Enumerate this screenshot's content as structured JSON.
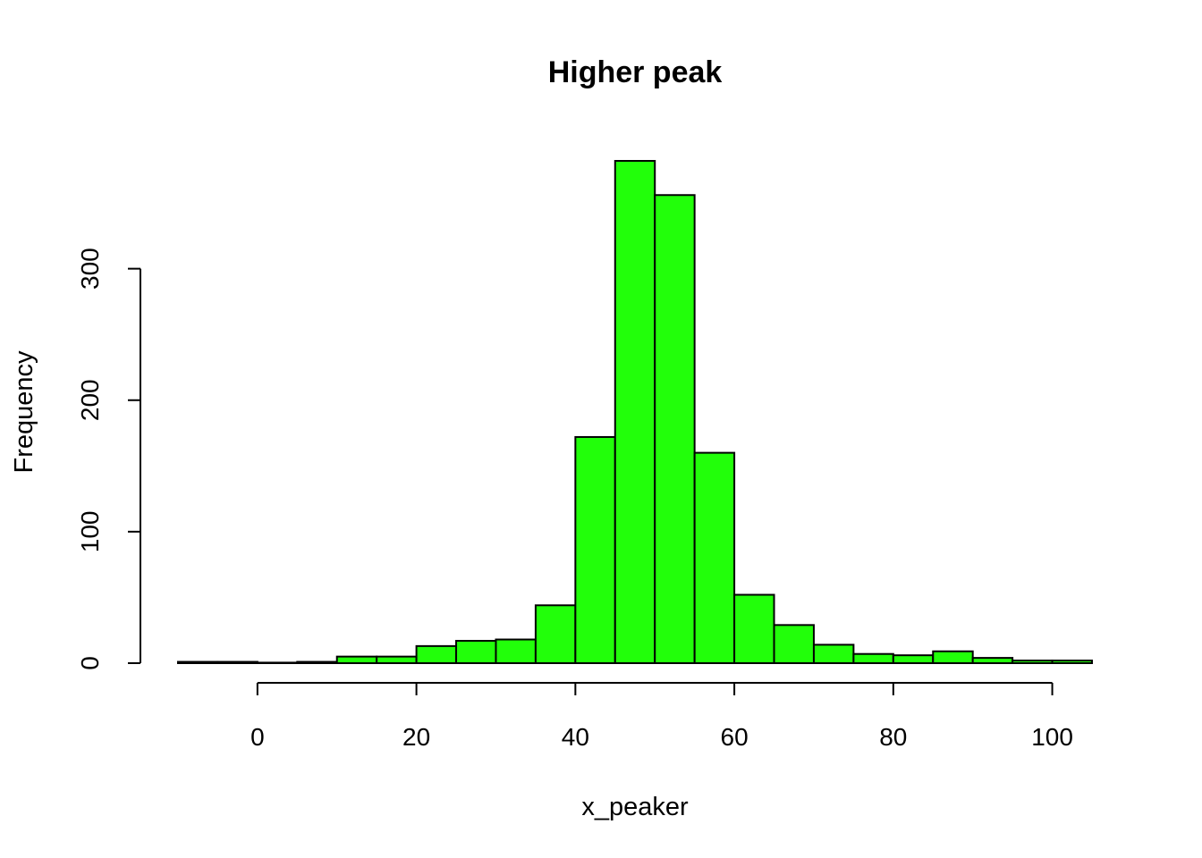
{
  "chart_data": {
    "type": "bar",
    "title": "Higher peak",
    "xlabel": "x_peaker",
    "ylabel": "Frequency",
    "bin_edges": [
      -10,
      -5,
      0,
      5,
      10,
      15,
      20,
      25,
      30,
      35,
      40,
      45,
      50,
      55,
      60,
      65,
      70,
      75,
      80,
      85,
      90,
      95,
      100,
      105
    ],
    "values": [
      1,
      1,
      0,
      1,
      5,
      5,
      13,
      17,
      18,
      44,
      172,
      382,
      356,
      160,
      52,
      29,
      14,
      7,
      6,
      9,
      4,
      2,
      2
    ],
    "x_ticks": [
      0,
      20,
      40,
      60,
      80,
      100
    ],
    "x_tick_labels": [
      "0",
      "20",
      "40",
      "60",
      "80",
      "100"
    ],
    "y_ticks": [
      0,
      100,
      200,
      300
    ],
    "y_tick_labels": [
      "0",
      "100",
      "200",
      "300"
    ],
    "xlim": [
      -10,
      105
    ],
    "ylim": [
      0,
      382
    ],
    "bar_color": "#22ff0a",
    "grid": false
  }
}
